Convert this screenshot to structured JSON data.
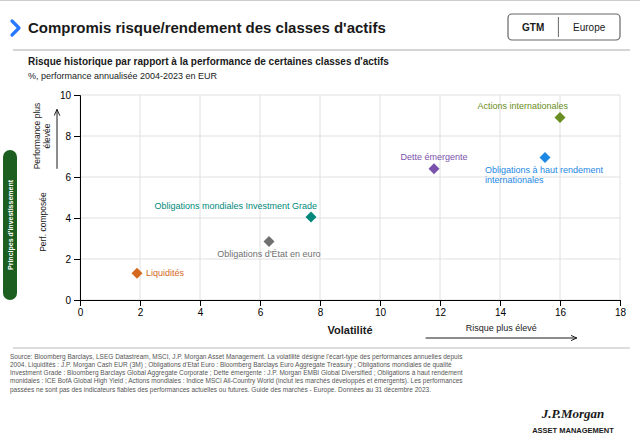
{
  "chart_data": {
    "type": "scatter",
    "title": "Compromis risque/rendement des classes d'actifs",
    "subtitle": [
      "Risque historique par rapport à la performance de certaines classes d'actifs",
      "%, performance annualisée 2004-2023 en EUR"
    ],
    "xlabel": "Volatilité",
    "ylabel": [
      "Performance plus\nélevée",
      "Perf. composée"
    ],
    "annotations": [
      "Risque plus élevé",
      "GTM",
      "Europe",
      "Principes d'investissement",
      "Source: Bloomberg Barclays, LSEG Datastream, MSCI, J.P. Morgan Asset Management. La volatilité désigne l'écart-type des performances annuelles depuis\n2004. Liquidités : J.P. Morgan Cash EUR (3M) ; Obligations d'Etat Euro : Bloomberg Barclays Euro Aggregate Treasury ; Obligations mondiales de qualité\nInvestment Grade : Bloomberg Barclays Global Aggregate Corporate ; Dette émergente : J.P. Morgan EMBI Global Diversified ; Obligations à haut rendement\nmonidales : ICE BofA Global High Yield ; Actions mondiales : Indice MSCI All-Country World (inclut les marchés développés et émergents). Les performances\npassées ne sont pas des indicateurs fiables des performances actuelles ou futures. Guide des marchés - Europe. Données au 31 décembre 2023.",
      "J.P.Morgan",
      "ASSET MANAGEMENT"
    ],
    "marker": "diamond",
    "grid": true,
    "xlim": [
      0,
      18
    ],
    "ylim": [
      0,
      10
    ],
    "xticks": [
      0,
      2,
      4,
      6,
      8,
      10,
      12,
      14,
      16,
      18
    ],
    "yticks": [
      0,
      2,
      4,
      6,
      8,
      10
    ],
    "series": [
      {
        "name": "Liquidités",
        "color": "#D4691E",
        "x": [
          1.9
        ],
        "values": [
          1.3
        ]
      },
      {
        "name": "Obligations d'État en euro",
        "color": "#707070",
        "x": [
          6.3
        ],
        "values": [
          2.85
        ]
      },
      {
        "name": "Obligations mondiales Investment Grade",
        "color": "#00897B",
        "x": [
          7.7
        ],
        "values": [
          4.05
        ]
      },
      {
        "name": "Dette émergente",
        "color": "#7B52AB",
        "x": [
          11.8
        ],
        "values": [
          6.4
        ]
      },
      {
        "name": "Obligations à haut rendement\ninternationales",
        "color": "#1E88E5",
        "x": [
          15.5
        ],
        "values": [
          6.95
        ]
      },
      {
        "name": "Actions internationales",
        "color": "#6B8E23",
        "x": [
          16.0
        ],
        "values": [
          8.9
        ]
      }
    ]
  }
}
